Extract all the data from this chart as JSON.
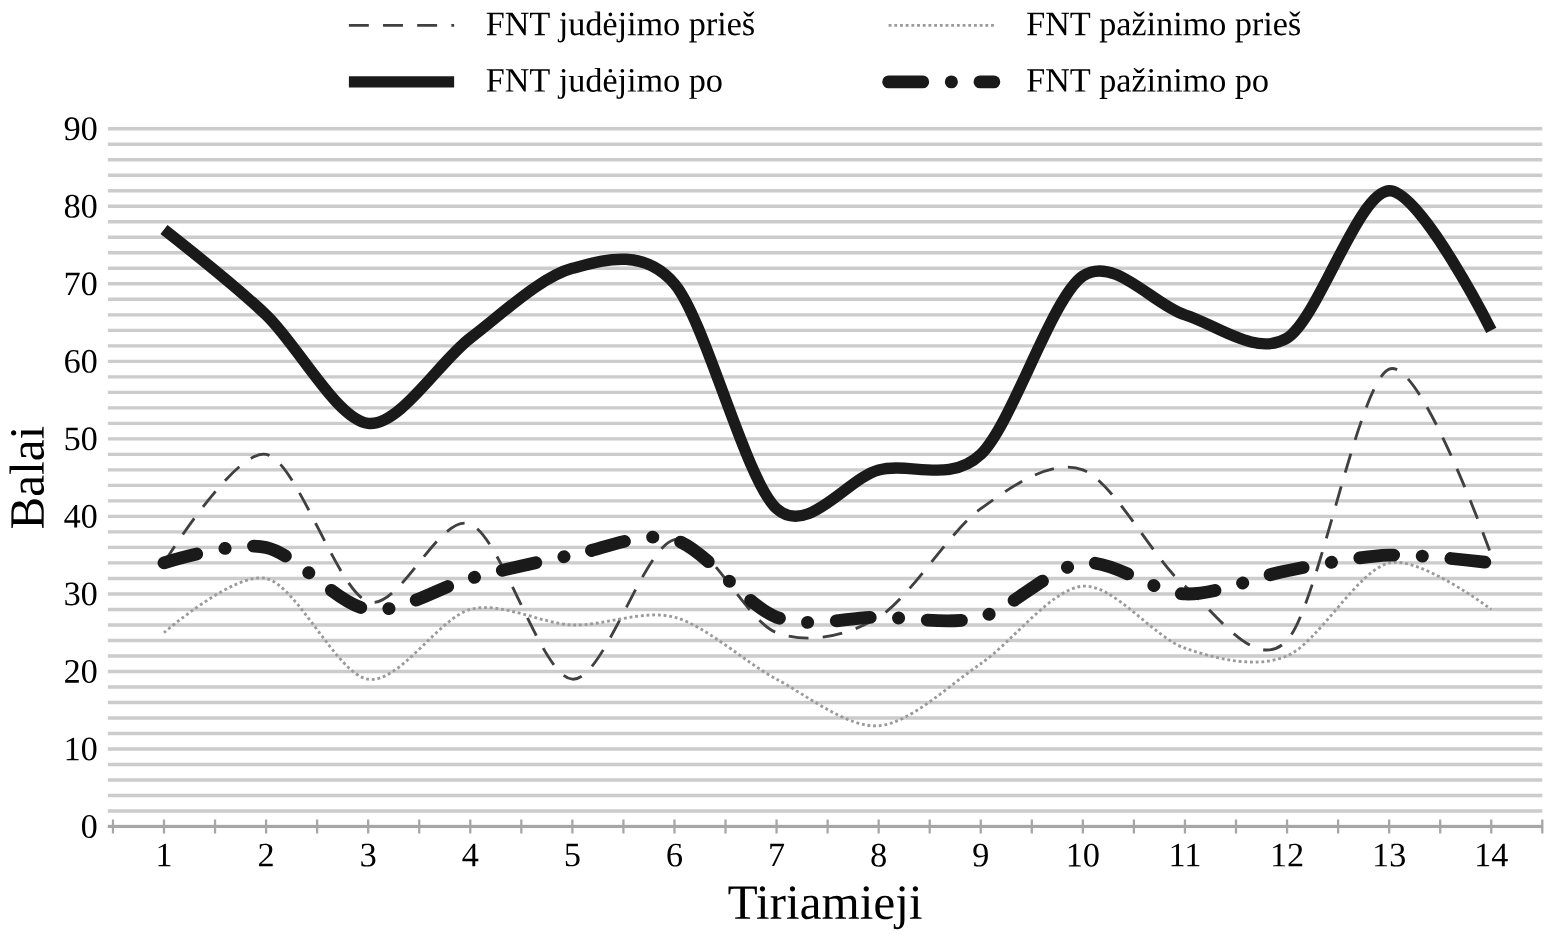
{
  "chart_data": {
    "type": "line",
    "xlabel": "Tiriamieji",
    "ylabel": "Balai",
    "categories": [
      "1",
      "2",
      "3",
      "4",
      "5",
      "6",
      "7",
      "8",
      "9",
      "10",
      "11",
      "12",
      "13",
      "14"
    ],
    "ylim": [
      0,
      90
    ],
    "yticks": [
      0,
      10,
      20,
      30,
      40,
      50,
      60,
      70,
      80,
      90
    ],
    "grid": "y",
    "legend": "top",
    "marker": "none",
    "series": [
      {
        "name": "FNT judėjimo prieš",
        "color": "#404040",
        "line_style": "dashed",
        "values": [
          34,
          48,
          29,
          39,
          19,
          37,
          25,
          27,
          41,
          46,
          31,
          24,
          59,
          35
        ]
      },
      {
        "name": "FNT pažinimo prieš",
        "color": "#9a9a9a",
        "line_style": "dotted",
        "values": [
          25,
          32,
          19,
          28,
          26,
          27,
          19,
          13,
          21,
          31,
          23,
          22,
          34,
          28
        ]
      },
      {
        "name": "FNT judėjimo po",
        "color": "#1a1a1a",
        "line_style": "solid",
        "values": [
          77,
          66,
          52,
          63,
          72,
          70,
          41,
          46,
          48,
          71,
          66,
          63,
          82,
          64
        ]
      },
      {
        "name": "FNT pažinimo po",
        "color": "#1a1a1a",
        "line_style": "dashdot",
        "values": [
          34,
          36,
          28,
          32,
          35,
          37,
          27,
          27,
          27,
          34,
          30,
          33,
          35,
          34
        ]
      }
    ]
  }
}
